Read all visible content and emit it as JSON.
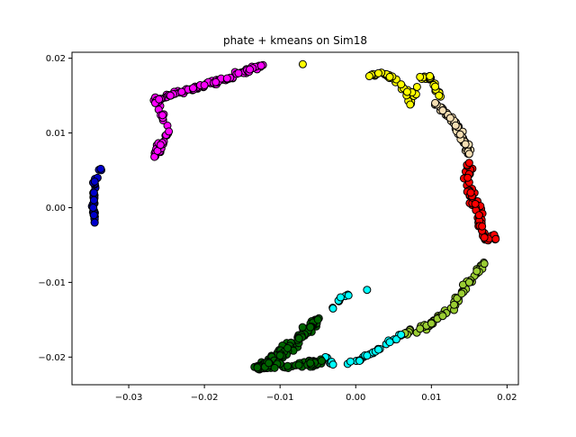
{
  "chart_data": {
    "type": "scatter",
    "title": "phate + kmeans on Sim18",
    "xlabel": "",
    "ylabel": "",
    "xlim": [
      -0.0375,
      0.0215
    ],
    "ylim": [
      -0.0237,
      0.0208
    ],
    "xticks": [
      -0.03,
      -0.02,
      -0.01,
      0.0,
      0.01,
      0.02
    ],
    "xtick_labels": [
      "−0.03",
      "−0.02",
      "−0.01",
      "0.00",
      "0.01",
      "0.02"
    ],
    "yticks": [
      -0.02,
      -0.01,
      0.0,
      0.01,
      0.02
    ],
    "ytick_labels": [
      "−0.02",
      "−0.01",
      "0.00",
      "0.01",
      "0.02"
    ],
    "grid": false,
    "legend": "none",
    "marker_edge_color": "#000000",
    "clusters": [
      {
        "color": "#0000cd",
        "ref": [
          [
            -0.0345,
            -0.002
          ],
          [
            -0.0346,
            -0.001
          ],
          [
            -0.0347,
            0.0
          ],
          [
            -0.0346,
            0.001
          ],
          [
            -0.0346,
            0.002
          ],
          [
            -0.0345,
            0.0035
          ],
          [
            -0.0337,
            0.0052
          ]
        ]
      },
      {
        "color": "#ff00ff",
        "ref": [
          [
            -0.0266,
            0.0068
          ],
          [
            -0.0262,
            0.0076
          ],
          [
            -0.0258,
            0.0084
          ],
          [
            -0.0247,
            0.0102
          ],
          [
            -0.0265,
            0.014
          ],
          [
            -0.026,
            0.0145
          ],
          [
            -0.0245,
            0.015
          ],
          [
            -0.023,
            0.0155
          ],
          [
            -0.0215,
            0.016
          ],
          [
            -0.02,
            0.0164
          ],
          [
            -0.0185,
            0.0168
          ],
          [
            -0.017,
            0.0173
          ],
          [
            -0.0155,
            0.018
          ],
          [
            -0.014,
            0.0185
          ],
          [
            -0.0125,
            0.019
          ]
        ]
      },
      {
        "color": "#ffff00",
        "ref": [
          [
            -0.007,
            0.0192
          ],
          [
            0.0018,
            0.0176
          ],
          [
            0.003,
            0.018
          ],
          [
            0.0045,
            0.0175
          ],
          [
            0.006,
            0.0165
          ],
          [
            0.0068,
            0.0155
          ],
          [
            0.0072,
            0.0138
          ],
          [
            0.0085,
            0.0175
          ],
          [
            0.0098,
            0.0176
          ],
          [
            0.0105,
            0.0162
          ],
          [
            0.011,
            0.015
          ]
        ]
      },
      {
        "color": "#f5deb3",
        "ref": [
          [
            0.0105,
            0.014
          ],
          [
            0.0115,
            0.013
          ],
          [
            0.0125,
            0.012
          ],
          [
            0.0132,
            0.011
          ],
          [
            0.0138,
            0.0098
          ],
          [
            0.0145,
            0.0085
          ],
          [
            0.015,
            0.0072
          ]
        ]
      },
      {
        "color": "#ff0000",
        "ref": [
          [
            0.015,
            0.006
          ],
          [
            0.0148,
            0.004
          ],
          [
            0.0152,
            0.002
          ],
          [
            0.0158,
            0.0005
          ],
          [
            0.0163,
            -0.001
          ],
          [
            0.0167,
            -0.0025
          ],
          [
            0.017,
            -0.004
          ],
          [
            0.0185,
            -0.0042
          ]
        ]
      },
      {
        "color": "#9acd32",
        "ref": [
          [
            0.017,
            -0.0075
          ],
          [
            0.016,
            -0.0085
          ],
          [
            0.015,
            -0.01
          ],
          [
            0.014,
            -0.0115
          ],
          [
            0.013,
            -0.013
          ],
          [
            0.0115,
            -0.0145
          ],
          [
            0.01,
            -0.0155
          ],
          [
            0.0085,
            -0.0162
          ],
          [
            0.0065,
            -0.0168
          ]
        ]
      },
      {
        "color": "#00ffff",
        "ref": [
          [
            0.0015,
            -0.011
          ],
          [
            -0.002,
            -0.012
          ],
          [
            -0.003,
            -0.0135
          ],
          [
            0.006,
            -0.017
          ],
          [
            0.0045,
            -0.018
          ],
          [
            0.003,
            -0.019
          ],
          [
            0.0015,
            -0.0198
          ],
          [
            0.0005,
            -0.0205
          ],
          [
            -0.003,
            -0.021
          ],
          [
            -0.004,
            -0.02
          ]
        ]
      },
      {
        "color": "#006400",
        "ref": [
          [
            -0.005,
            -0.015
          ],
          [
            -0.006,
            -0.016
          ],
          [
            -0.0075,
            -0.0175
          ],
          [
            -0.009,
            -0.0188
          ],
          [
            -0.01,
            -0.0198
          ],
          [
            -0.0115,
            -0.0208
          ],
          [
            -0.013,
            -0.0214
          ],
          [
            -0.009,
            -0.0212
          ],
          [
            -0.006,
            -0.0208
          ],
          [
            -0.0045,
            -0.0205
          ]
        ]
      }
    ]
  }
}
